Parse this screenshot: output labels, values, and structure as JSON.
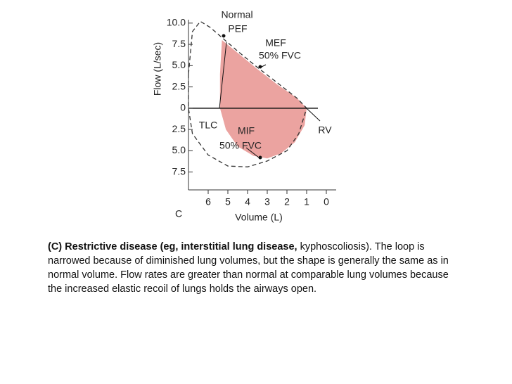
{
  "chart_data": {
    "type": "area",
    "x_label": "Volume (L)",
    "y_label": "Flow (L/sec)",
    "panel_label": "C",
    "xlim": [
      7,
      -0.5
    ],
    "xticks": [
      6,
      5,
      4,
      3,
      2,
      1,
      0
    ],
    "ylim": [
      -9.6,
      10.4
    ],
    "yticks": [
      {
        "value": 10,
        "label": "10.0"
      },
      {
        "value": 7.5,
        "label": "7.5"
      },
      {
        "value": 5,
        "label": "5.0"
      },
      2.5,
      0,
      {
        "value": -2.5,
        "label": "2.5"
      },
      {
        "value": -5,
        "label": "5.0"
      },
      {
        "value": -7.5,
        "label": "7.5"
      }
    ],
    "series": [
      {
        "color": "#eba3a0",
        "x": [
          5.4,
          5.4,
          5.3,
          4.5,
          3.5,
          2.5,
          1.5,
          1.0,
          1.1,
          1.6,
          2.3,
          3.0,
          3.7,
          4.5,
          5.1,
          5.4
        ],
        "values": [
          0,
          4,
          8.0,
          6.5,
          4.6,
          2.8,
          1.2,
          0,
          -2,
          -4,
          -5.3,
          -5.9,
          -5.6,
          -4.5,
          -2.5,
          0
        ]
      },
      {
        "color": "#333333",
        "dashed": true,
        "x": [
          7.0,
          6.8,
          6.4,
          5.9,
          5.3,
          4.5,
          3.5,
          2.5,
          1.5,
          1.0,
          1.4,
          2.0,
          3.0,
          4.0,
          5.0,
          6.0,
          6.8,
          7.0,
          7.0
        ],
        "values": [
          4,
          9.0,
          10.2,
          9.5,
          8.3,
          6.7,
          4.8,
          3.0,
          1.2,
          0,
          -3.0,
          -5.0,
          -6.2,
          -6.9,
          -6.8,
          -5.5,
          -3.0,
          0,
          4
        ]
      }
    ],
    "annotations": [
      "Normal",
      "PEF",
      "MEF",
      "50% FVC",
      "TLC",
      "MIF",
      "50% FVC",
      "RV"
    ]
  },
  "caption": {
    "bold": "(C) Restrictive disease (eg, interstitial lung disease,",
    "text": " kyphoscoliosis). The loop is narrowed because of diminished lung volumes, but the shape is generally the same as in normal volume. Flow rates are greater than normal at comparable lung volumes because the increased elastic recoil of lungs holds the airways open."
  }
}
